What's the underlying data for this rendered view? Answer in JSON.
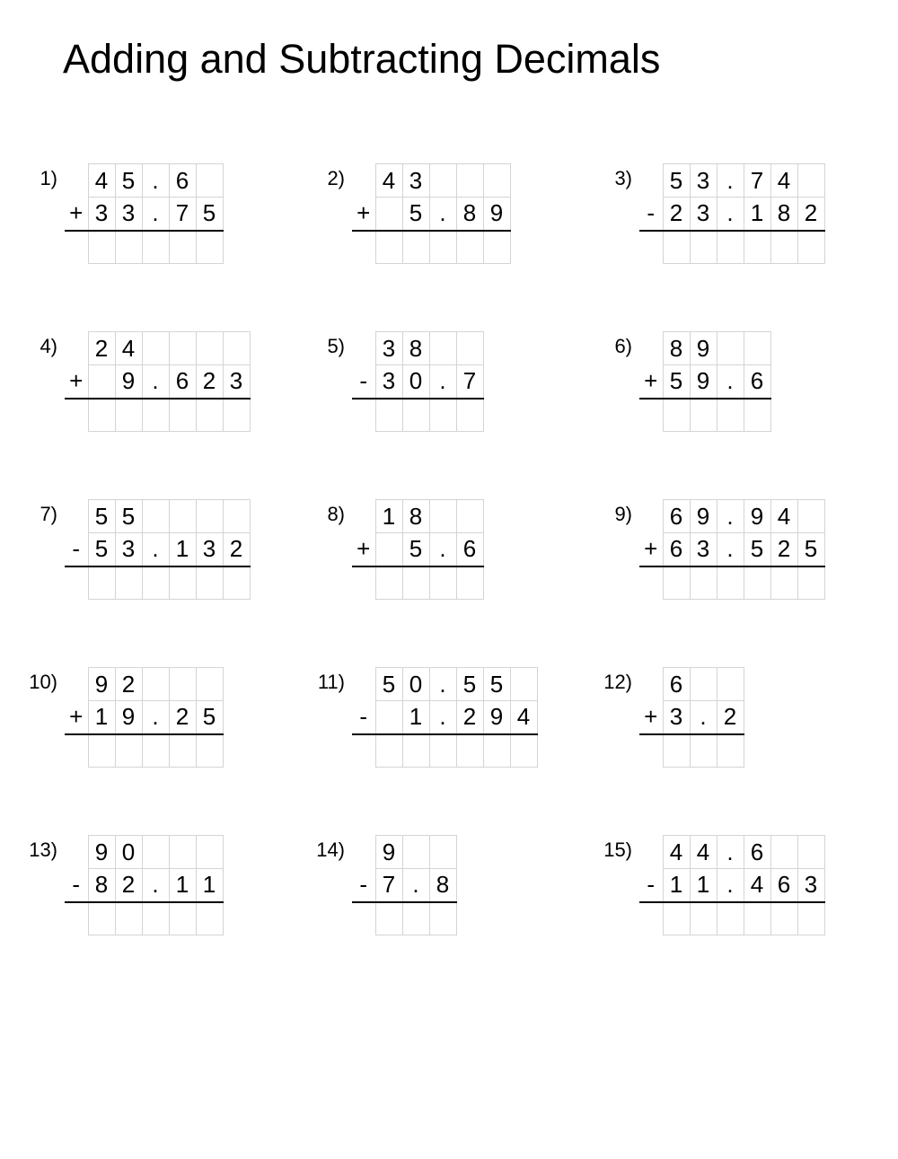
{
  "title": "Adding and Subtracting Decimals",
  "cell_border_color": "#d4d4d4",
  "underline_color": "#000000",
  "text_color": "#000000",
  "background_color": "#ffffff",
  "title_fontsize": 45,
  "digit_fontsize": 26,
  "problems": [
    {
      "n": "1)",
      "op": "+",
      "cols": 5,
      "r1": [
        "4",
        "5",
        ".",
        "6",
        ""
      ],
      "r2": [
        "3",
        "3",
        ".",
        "7",
        "5"
      ]
    },
    {
      "n": "2)",
      "op": "+",
      "cols": 5,
      "r1": [
        "4",
        "3",
        "",
        "",
        ""
      ],
      "r2": [
        "",
        "5",
        ".",
        "8",
        "9"
      ]
    },
    {
      "n": "3)",
      "op": "-",
      "cols": 6,
      "r1": [
        "5",
        "3",
        ".",
        "7",
        "4",
        ""
      ],
      "r2": [
        "2",
        "3",
        ".",
        "1",
        "8",
        "2"
      ]
    },
    {
      "n": "4)",
      "op": "+",
      "cols": 6,
      "r1": [
        "2",
        "4",
        "",
        "",
        "",
        ""
      ],
      "r2": [
        "",
        "9",
        ".",
        "6",
        "2",
        "3"
      ]
    },
    {
      "n": "5)",
      "op": "-",
      "cols": 4,
      "r1": [
        "3",
        "8",
        "",
        ""
      ],
      "r2": [
        "3",
        "0",
        ".",
        "7"
      ]
    },
    {
      "n": "6)",
      "op": "+",
      "cols": 4,
      "r1": [
        "8",
        "9",
        "",
        ""
      ],
      "r2": [
        "5",
        "9",
        ".",
        "6"
      ]
    },
    {
      "n": "7)",
      "op": "-",
      "cols": 6,
      "r1": [
        "5",
        "5",
        "",
        "",
        "",
        ""
      ],
      "r2": [
        "5",
        "3",
        ".",
        "1",
        "3",
        "2"
      ]
    },
    {
      "n": "8)",
      "op": "+",
      "cols": 4,
      "r1": [
        "1",
        "8",
        "",
        ""
      ],
      "r2": [
        "",
        "5",
        ".",
        "6"
      ]
    },
    {
      "n": "9)",
      "op": "+",
      "cols": 6,
      "r1": [
        "6",
        "9",
        ".",
        "9",
        "4",
        ""
      ],
      "r2": [
        "6",
        "3",
        ".",
        "5",
        "2",
        "5"
      ]
    },
    {
      "n": "10)",
      "op": "+",
      "cols": 5,
      "r1": [
        "9",
        "2",
        "",
        "",
        ""
      ],
      "r2": [
        "1",
        "9",
        ".",
        "2",
        "5"
      ]
    },
    {
      "n": "11)",
      "op": "-",
      "cols": 6,
      "r1": [
        "5",
        "0",
        ".",
        "5",
        "5",
        ""
      ],
      "r2": [
        "",
        "1",
        ".",
        "2",
        "9",
        "4"
      ]
    },
    {
      "n": "12)",
      "op": "+",
      "cols": 3,
      "r1": [
        "6",
        "",
        ""
      ],
      "r2": [
        "3",
        ".",
        "2"
      ]
    },
    {
      "n": "13)",
      "op": "-",
      "cols": 5,
      "r1": [
        "9",
        "0",
        "",
        "",
        ""
      ],
      "r2": [
        "8",
        "2",
        ".",
        "1",
        "1"
      ]
    },
    {
      "n": "14)",
      "op": "-",
      "cols": 3,
      "r1": [
        "9",
        "",
        ""
      ],
      "r2": [
        "7",
        ".",
        "8"
      ]
    },
    {
      "n": "15)",
      "op": "-",
      "cols": 6,
      "r1": [
        "4",
        "4",
        ".",
        "6",
        "",
        ""
      ],
      "r2": [
        "1",
        "1",
        ".",
        "4",
        "6",
        "3"
      ]
    }
  ]
}
